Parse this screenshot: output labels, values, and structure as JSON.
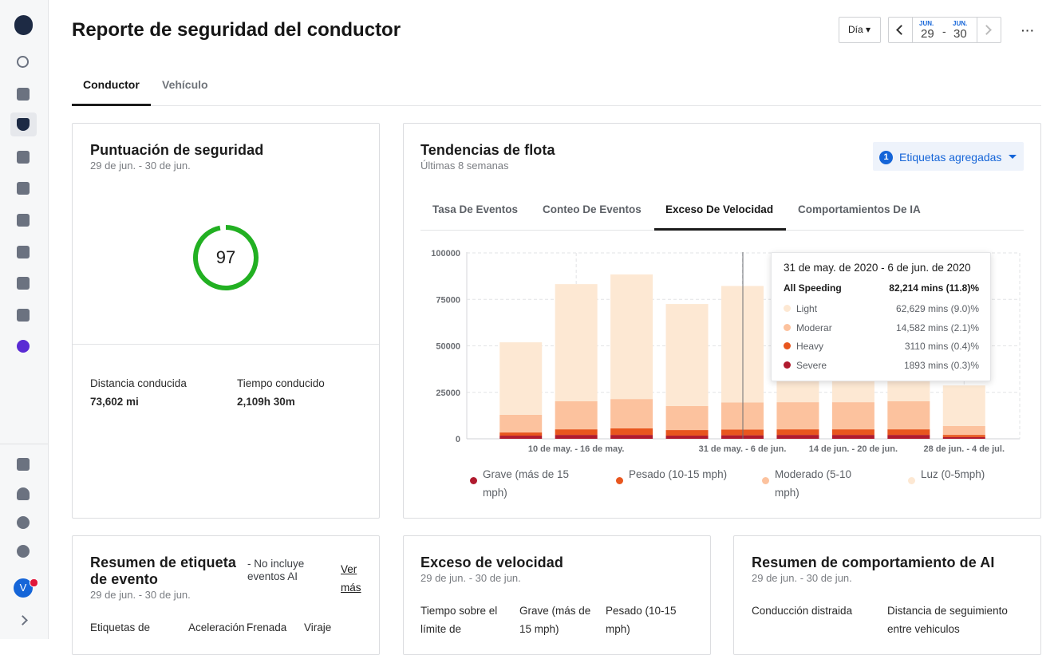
{
  "sidebar": {
    "avatar": "V"
  },
  "header": {
    "title": "Reporte de seguridad del conductor",
    "period": "Día",
    "date_range": {
      "start_month": "JUN.",
      "start_day": 29,
      "separator": "-",
      "end_month": "JUN.",
      "end_day": 30
    }
  },
  "tabs": [
    "Conductor",
    "Vehículo"
  ],
  "safety_score": {
    "title": "Puntuación de seguridad",
    "subtitle": "29 de jun. - 30 de jun.",
    "value": 97,
    "range": [
      0,
      100
    ],
    "color": "#22b022",
    "stats": [
      {
        "label": "Distancia conducida",
        "value": "73,602 mi"
      },
      {
        "label": "Tiempo conducido",
        "value": "2,109h 30m"
      }
    ]
  },
  "fleet_trends": {
    "title": "Tendencias de flota",
    "subtitle": "Últimas 8 semanas",
    "filter": {
      "count": 1,
      "label": "Etiquetas agregadas"
    },
    "tabs": [
      "Tasa De Eventos",
      "Conteo De Eventos",
      "Exceso De Velocidad",
      "Comportamientos De IA"
    ]
  },
  "chart_data": {
    "type": "stacked_bar",
    "categories": [
      null,
      "10 de may. - 16 de may.",
      null,
      null,
      "31 de may. - 6 de jun.",
      null,
      "14 de jun. - 20 de jun.",
      null,
      "28 de jun. - 4 de jul."
    ],
    "series": [
      {
        "name": "Grave (más de 15 mph)",
        "color": "#b01a2e",
        "values": [
          1700,
          2100,
          2100,
          1700,
          1893,
          2100,
          2100,
          2100,
          900
        ]
      },
      {
        "name": "Pesado (10-15 mph)",
        "color": "#e8561e",
        "values": [
          1700,
          3000,
          3500,
          3000,
          3110,
          3000,
          3000,
          3000,
          1200
        ]
      },
      {
        "name": "Moderado (5-10 mph)",
        "color": "#fcc29e",
        "values": [
          9500,
          15100,
          15800,
          12900,
          14582,
          14600,
          14600,
          15100,
          4800
        ]
      },
      {
        "name": "Luz (0-5mph)",
        "color": "#fde8d3",
        "values": [
          39000,
          63000,
          67000,
          54900,
          62629,
          60000,
          58000,
          57000,
          21800
        ]
      }
    ],
    "ylim": [
      0,
      100000
    ],
    "yticks": [
      0,
      25000,
      50000,
      75000,
      100000
    ],
    "grid": true,
    "tooltip": {
      "title": "31 de may. de 2020 - 6 de jun. de 2020",
      "total_label": "All Speeding",
      "total_value": "82,214 mins (11.8)%",
      "rows": [
        {
          "name": "Light",
          "value": "62,629 mins (9.0)%"
        },
        {
          "name": "Moderar",
          "value": "14,582 mins (2.1)%"
        },
        {
          "name": "Heavy",
          "value": "3110 mins (0.4)%"
        },
        {
          "name": "Severe",
          "value": "1893 mins (0.3)%"
        }
      ]
    }
  },
  "cards": [
    {
      "title": "Resumen de etiqueta de evento",
      "note": "- No incluye eventos AI",
      "link": "Ver más",
      "subtitle": "29 de jun. - 30 de jun.",
      "columns": [
        "Etiquetas de",
        "Aceleración",
        "Frenada",
        "Viraje"
      ]
    },
    {
      "title": "Exceso de velocidad",
      "subtitle": "29 de jun. - 30 de jun.",
      "columns": [
        "Tiempo sobre el límite de",
        "Grave (más de 15 mph)",
        "Pesado (10-15 mph)"
      ]
    },
    {
      "title": "Resumen de comportamiento de AI",
      "subtitle": "29 de jun. - 30 de jun.",
      "columns": [
        "Conducción distraida",
        "Distancia de seguimiento entre vehiculos"
      ]
    }
  ]
}
